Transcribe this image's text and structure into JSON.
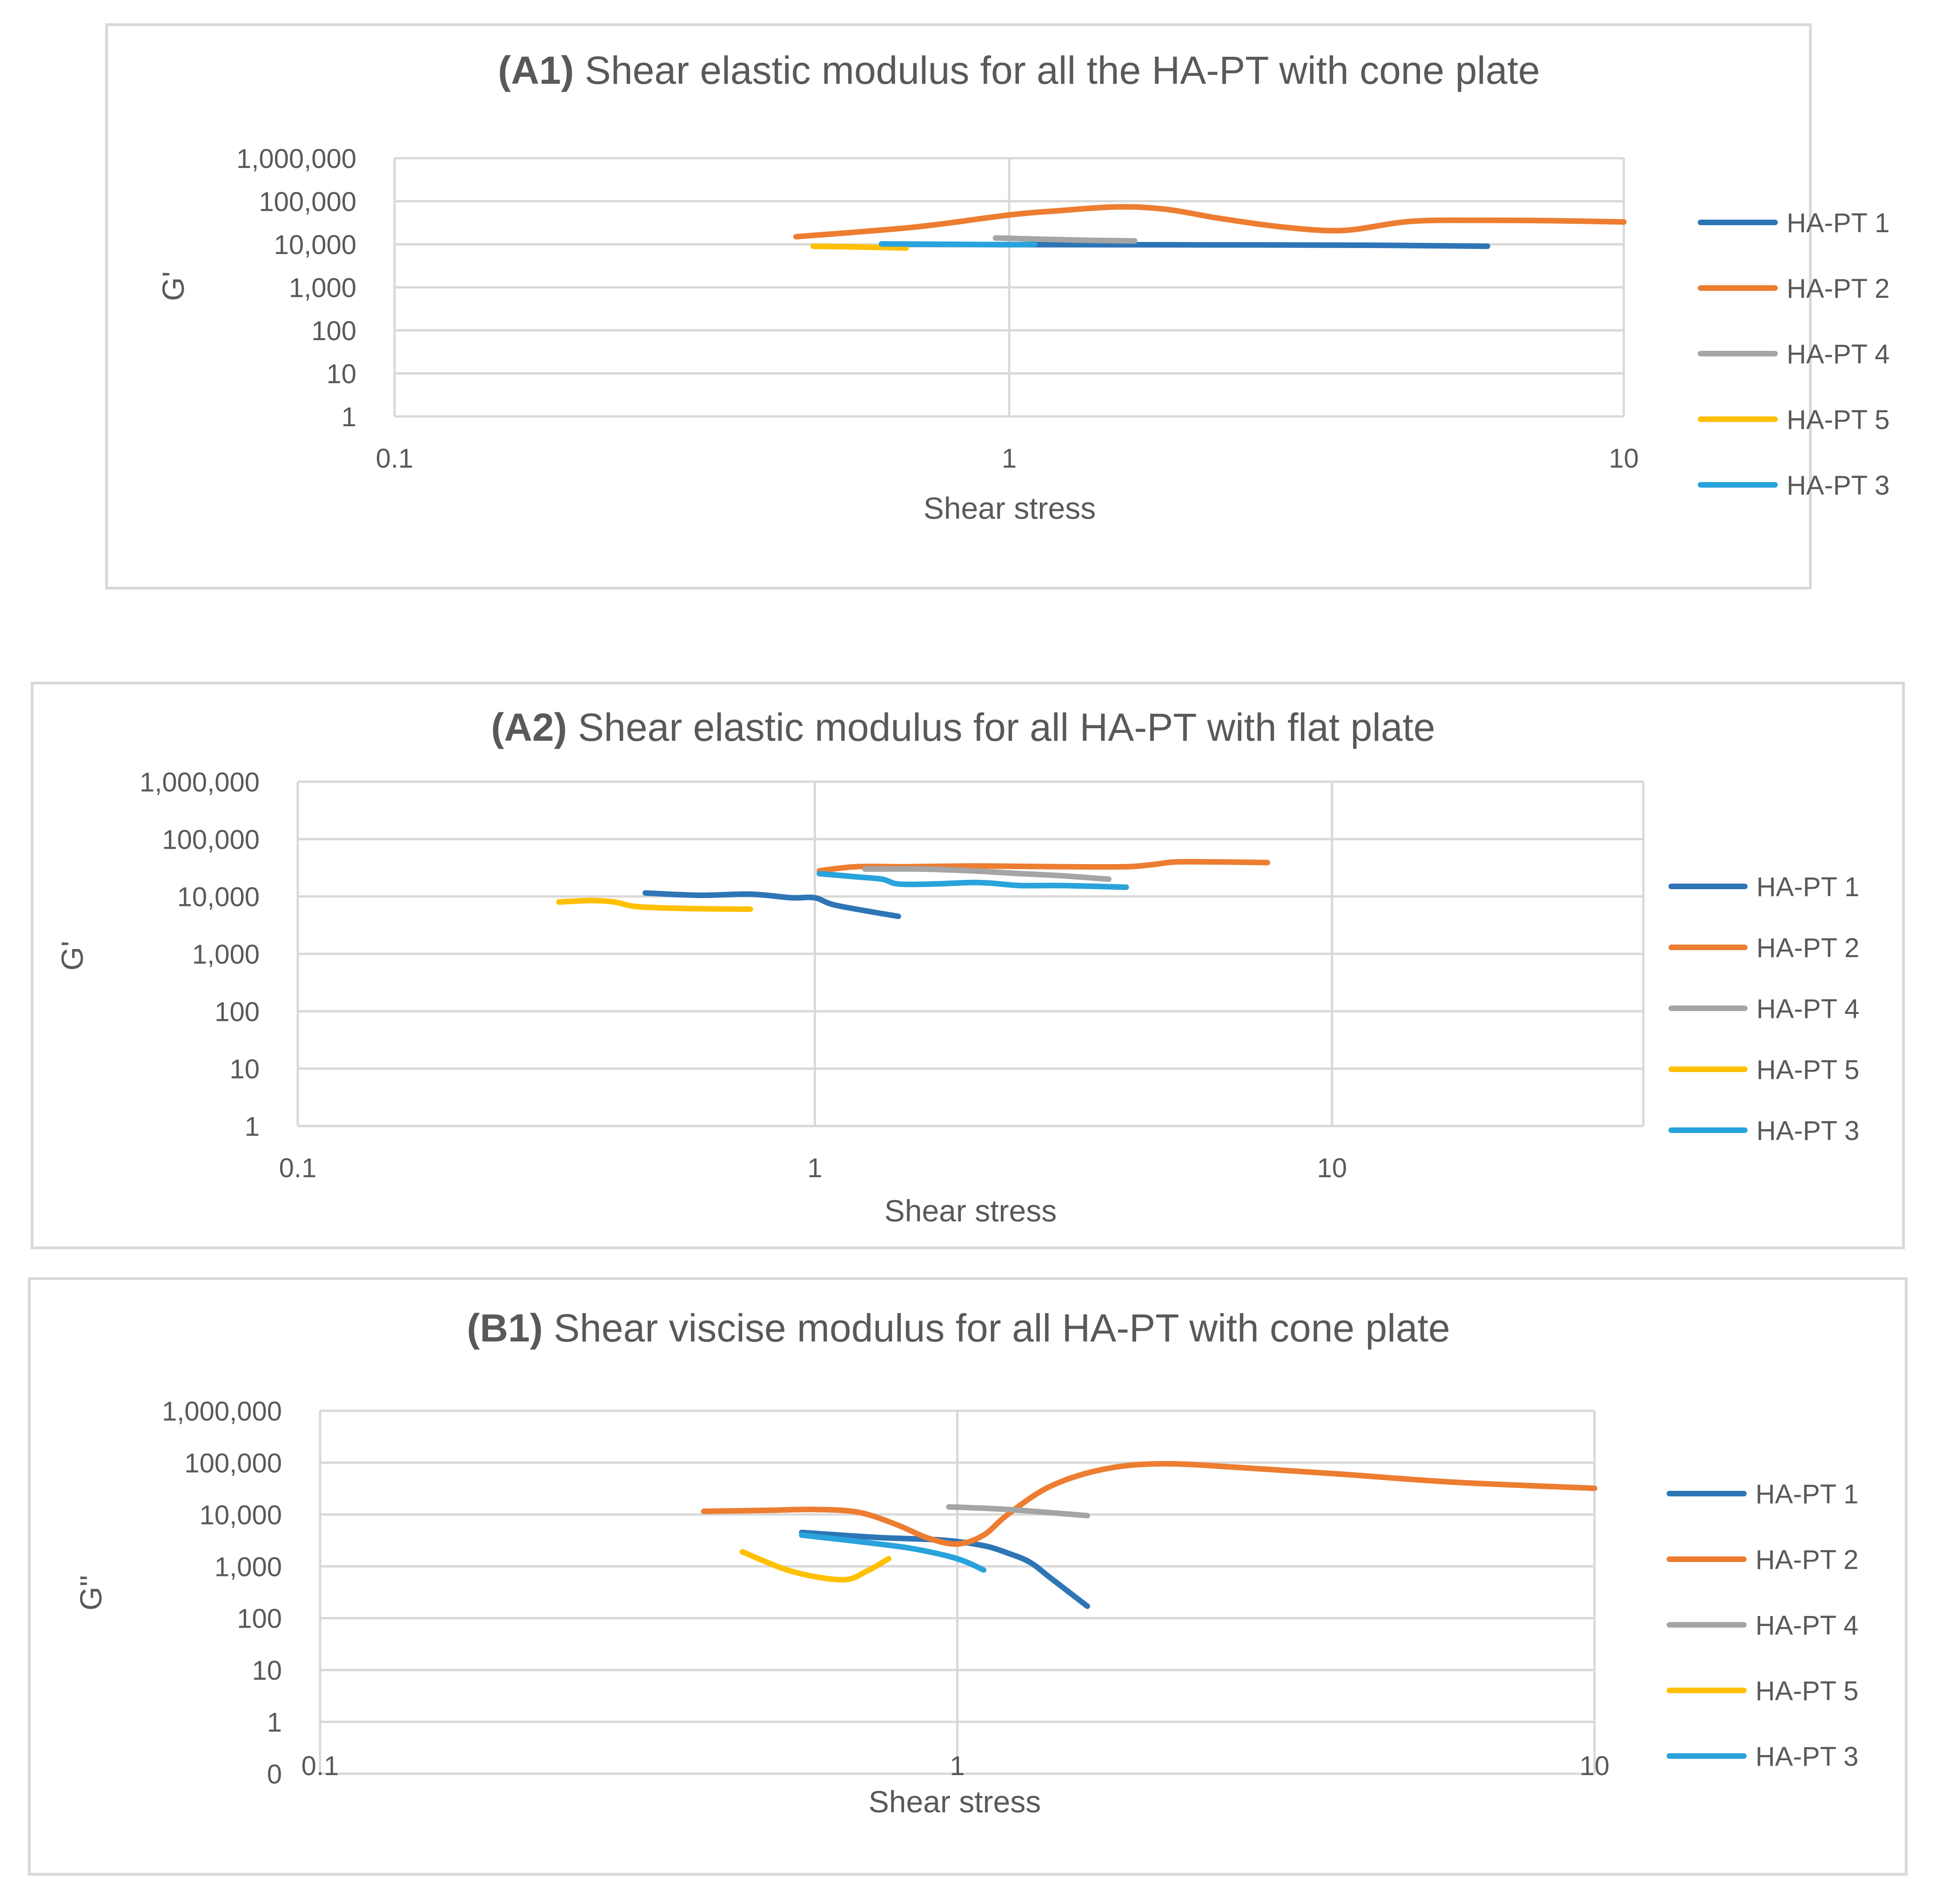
{
  "chart_data": [
    {
      "type": "line",
      "title_prefix": "(A1)",
      "title_text": "Shear elastic modulus for all the HA-PT with cone plate",
      "xlabel": "Shear stress",
      "ylabel": "G'",
      "xscale": "log",
      "yscale": "log",
      "xlim": [
        0.1,
        10
      ],
      "ylim": [
        1,
        1000000
      ],
      "x_ticks": [
        {
          "v": 0.1,
          "label": "0.1"
        },
        {
          "v": 1,
          "label": "1"
        },
        {
          "v": 10,
          "label": "10"
        }
      ],
      "y_ticks": [
        {
          "v": 1,
          "label": "1"
        },
        {
          "v": 10,
          "label": "10"
        },
        {
          "v": 100,
          "label": "100"
        },
        {
          "v": 1000,
          "label": "1,000"
        },
        {
          "v": 10000,
          "label": "10,000"
        },
        {
          "v": 100000,
          "label": "100,000"
        },
        {
          "v": 1000000,
          "label": "1,000,000"
        }
      ],
      "legend_position": "right",
      "series": [
        {
          "name": "HA-PT 1",
          "color": "#2e75b6",
          "x": [
            0.62,
            1.0,
            2.0,
            4.0,
            6.0
          ],
          "y": [
            10000,
            9800,
            9700,
            9500,
            9000
          ]
        },
        {
          "name": "HA-PT 2",
          "color": "#ed7d31",
          "x": [
            0.45,
            0.7,
            1.0,
            1.2,
            1.5,
            1.8,
            2.2,
            2.8,
            3.5,
            4.5,
            6.0,
            8.0,
            10.0
          ],
          "y": [
            15000,
            25000,
            48000,
            60000,
            74000,
            65000,
            40000,
            25000,
            21000,
            34000,
            36000,
            35000,
            33000
          ]
        },
        {
          "name": "HA-PT 4",
          "color": "#a5a5a5",
          "x": [
            0.95,
            1.3,
            1.6
          ],
          "y": [
            14000,
            12500,
            12000
          ]
        },
        {
          "name": "HA-PT 5",
          "color": "#ffc000",
          "x": [
            0.48,
            0.58,
            0.68
          ],
          "y": [
            9000,
            8600,
            8200
          ]
        },
        {
          "name": "HA-PT 3",
          "color": "#29a3db",
          "x": [
            0.62,
            0.8,
            1.0,
            1.1
          ],
          "y": [
            10200,
            10000,
            9800,
            10000
          ]
        }
      ]
    },
    {
      "type": "line",
      "title_prefix": "(A2)",
      "title_text": "Shear elastic modulus for all HA-PT with flat plate",
      "xlabel": "Shear stress",
      "ylabel": "G'",
      "xscale": "log",
      "yscale": "log",
      "xlim": [
        0.1,
        40
      ],
      "ylim": [
        1,
        1000000
      ],
      "x_ticks": [
        {
          "v": 0.1,
          "label": "0.1"
        },
        {
          "v": 1,
          "label": "1"
        },
        {
          "v": 10,
          "label": "10"
        }
      ],
      "y_ticks": [
        {
          "v": 1,
          "label": "1"
        },
        {
          "v": 10,
          "label": "10"
        },
        {
          "v": 100,
          "label": "100"
        },
        {
          "v": 1000,
          "label": "1,000"
        },
        {
          "v": 10000,
          "label": "10,000"
        },
        {
          "v": 100000,
          "label": "100,000"
        },
        {
          "v": 1000000,
          "label": "1,000,000"
        }
      ],
      "legend_position": "right",
      "series": [
        {
          "name": "HA-PT 1",
          "color": "#2e75b6",
          "x": [
            0.47,
            0.6,
            0.75,
            0.9,
            1.0,
            1.1,
            1.45
          ],
          "y": [
            11500,
            10500,
            11000,
            9500,
            9500,
            7000,
            4500
          ]
        },
        {
          "name": "HA-PT 2",
          "color": "#ed7d31",
          "x": [
            1.02,
            1.2,
            1.5,
            2.0,
            2.5,
            3.0,
            4.0,
            4.5,
            5.0,
            6.0,
            7.5
          ],
          "y": [
            28000,
            33000,
            33000,
            34000,
            33500,
            33000,
            33000,
            36000,
            40000,
            40000,
            39000
          ]
        },
        {
          "name": "HA-PT 4",
          "color": "#a5a5a5",
          "x": [
            1.25,
            1.6,
            2.0,
            2.5,
            3.0,
            3.7
          ],
          "y": [
            30000,
            30000,
            28000,
            25000,
            23000,
            20000
          ]
        },
        {
          "name": "HA-PT 5",
          "color": "#ffc000",
          "x": [
            0.32,
            0.37,
            0.41,
            0.45,
            0.55,
            0.75
          ],
          "y": [
            8000,
            8500,
            8000,
            6700,
            6200,
            6000
          ]
        },
        {
          "name": "HA-PT 3",
          "color": "#29a3db",
          "x": [
            1.02,
            1.2,
            1.35,
            1.45,
            1.7,
            2.0,
            2.2,
            2.5,
            3.0,
            4.0
          ],
          "y": [
            25000,
            22000,
            20000,
            16500,
            16500,
            17500,
            17000,
            15500,
            15500,
            14500
          ]
        }
      ]
    },
    {
      "type": "line",
      "title_prefix": "(B1)",
      "title_text": "Shear viscise modulus for all HA-PT with cone plate",
      "xlabel": "Shear stress",
      "ylabel": "G''",
      "xscale": "log",
      "yscale": "log",
      "xlim": [
        0.1,
        10
      ],
      "ylim": [
        0.1,
        1000000
      ],
      "x_ticks": [
        {
          "v": 0.1,
          "label": "0.1"
        },
        {
          "v": 1,
          "label": "1"
        },
        {
          "v": 10,
          "label": "10"
        }
      ],
      "y_ticks": [
        {
          "v": 0.1,
          "label": "0"
        },
        {
          "v": 1,
          "label": "1"
        },
        {
          "v": 10,
          "label": "10"
        },
        {
          "v": 100,
          "label": "100"
        },
        {
          "v": 1000,
          "label": "1,000"
        },
        {
          "v": 10000,
          "label": "10,000"
        },
        {
          "v": 100000,
          "label": "100,000"
        },
        {
          "v": 1000000,
          "label": "1,000,000"
        }
      ],
      "legend_position": "right",
      "series": [
        {
          "name": "HA-PT 1",
          "color": "#2e75b6",
          "x": [
            0.57,
            0.75,
            0.95,
            1.1,
            1.2,
            1.3,
            1.4,
            1.6
          ],
          "y": [
            4500,
            3600,
            3200,
            2500,
            1800,
            1200,
            600,
            170
          ]
        },
        {
          "name": "HA-PT 2",
          "color": "#ed7d31",
          "x": [
            0.4,
            0.5,
            0.6,
            0.7,
            0.8,
            0.9,
            1.0,
            1.1,
            1.2,
            1.4,
            1.7,
            2.1,
            2.8,
            4.0,
            6.0,
            10.0
          ],
          "y": [
            11500,
            12000,
            12500,
            11000,
            6500,
            3500,
            2700,
            4000,
            10000,
            35000,
            75000,
            95000,
            80000,
            60000,
            42000,
            32000
          ]
        },
        {
          "name": "HA-PT 4",
          "color": "#a5a5a5",
          "x": [
            0.97,
            1.2,
            1.6
          ],
          "y": [
            14000,
            12500,
            9500
          ]
        },
        {
          "name": "HA-PT 5",
          "color": "#ffc000",
          "x": [
            0.46,
            0.55,
            0.66,
            0.72,
            0.78
          ],
          "y": [
            1900,
            800,
            550,
            800,
            1400
          ]
        },
        {
          "name": "HA-PT 3",
          "color": "#29a3db",
          "x": [
            0.57,
            0.7,
            0.85,
            1.0,
            1.1
          ],
          "y": [
            4000,
            3000,
            2200,
            1400,
            850
          ]
        }
      ]
    }
  ]
}
